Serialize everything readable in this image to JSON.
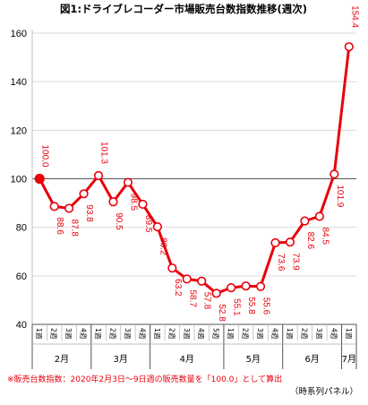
{
  "chart_data": {
    "type": "line",
    "title": "図1:ドライブレコーダー市場販売台数指数推移(週次)",
    "categories": [
      "1週",
      "2週",
      "3週",
      "4週",
      "1週",
      "2週",
      "3週",
      "4週",
      "1週",
      "2週",
      "3週",
      "4週",
      "5週",
      "1週",
      "2週",
      "3週",
      "4週",
      "1週",
      "2週",
      "3週",
      "4週",
      "1週"
    ],
    "months": [
      {
        "label": "2月",
        "start": 0,
        "end": 3
      },
      {
        "label": "3月",
        "start": 4,
        "end": 7
      },
      {
        "label": "4月",
        "start": 8,
        "end": 12
      },
      {
        "label": "5月",
        "start": 13,
        "end": 16
      },
      {
        "label": "6月",
        "start": 17,
        "end": 20
      },
      {
        "label": "7月",
        "start": 21,
        "end": 21
      }
    ],
    "series": [
      {
        "values": [
          100.0,
          88.6,
          87.8,
          93.8,
          101.3,
          90.5,
          98.5,
          89.5,
          80.2,
          63.2,
          58.7,
          57.8,
          52.8,
          55.1,
          55.8,
          55.6,
          73.6,
          73.9,
          82.6,
          84.5,
          101.9,
          154.4
        ],
        "data_labels": [
          "100.0",
          "88.6",
          "87.8",
          "93.8",
          "101.3",
          "90.5",
          "98.5",
          "89.5",
          "80.2",
          "63.2",
          "58.7",
          "57.8",
          "52.8",
          "55.1",
          "55.8",
          "55.6",
          "73.6",
          "73.9",
          "82.6",
          "84.5",
          "101.9",
          "154.4"
        ],
        "color": "#e8000b"
      }
    ],
    "ylim": [
      40,
      160
    ],
    "yticks": [
      "40",
      "60",
      "80",
      "100",
      "120",
      "140",
      "160"
    ],
    "grid": "y-major",
    "reference_line": 100
  },
  "footnote": {
    "line1": "※販売台数指数：2020年2月3日〜9日週の販売数量を「100.0」として算出",
    "line2": "（時系列パネル）"
  }
}
